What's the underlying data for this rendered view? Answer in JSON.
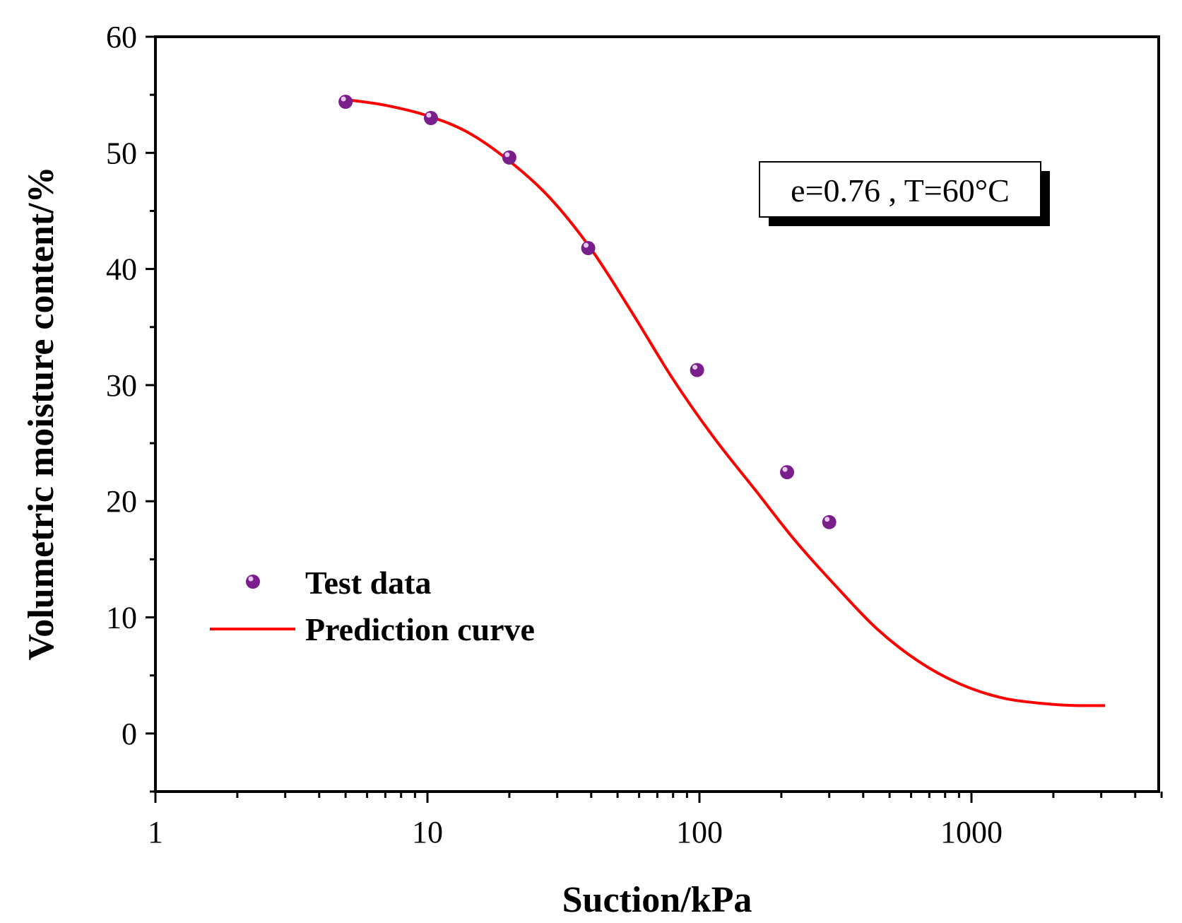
{
  "chart_data": {
    "type": "scatter",
    "title": "",
    "xlabel": "Suction/kPa",
    "ylabel": "Volumetric moisture content/%",
    "xscale": "log",
    "xlim": [
      1,
      5500
    ],
    "ylim": [
      -5,
      60
    ],
    "x_ticks": [
      1,
      10,
      100,
      1000
    ],
    "x_tick_labels": [
      "1",
      "10",
      "100",
      "1000"
    ],
    "y_ticks": [
      0,
      10,
      20,
      30,
      40,
      50,
      60
    ],
    "y_tick_labels": [
      "0",
      "10",
      "20",
      "30",
      "40",
      "50",
      "60"
    ],
    "annotation": "e=0.76 , T=60°C",
    "legend_position": "left",
    "series": [
      {
        "name": "Test data",
        "kind": "scatter",
        "color": "#7a1e8c",
        "x": [
          5,
          10.3,
          20,
          39,
          98,
          210,
          300
        ],
        "y": [
          54.4,
          53.0,
          49.6,
          41.8,
          31.3,
          22.5,
          18.2
        ]
      },
      {
        "name": "Prediction curve",
        "kind": "line",
        "color": "#ff0000",
        "x": [
          5,
          7,
          10,
          14,
          20,
          28,
          40,
          56,
          80,
          112,
          160,
          225,
          320,
          450,
          640,
          900,
          1280,
          1800,
          2550,
          3100
        ],
        "y": [
          54.6,
          54.1,
          53.2,
          51.8,
          49.3,
          46.2,
          41.7,
          36.4,
          30.5,
          25.6,
          21.0,
          16.6,
          12.6,
          9.0,
          6.2,
          4.3,
          3.1,
          2.6,
          2.4,
          2.4
        ]
      }
    ]
  }
}
